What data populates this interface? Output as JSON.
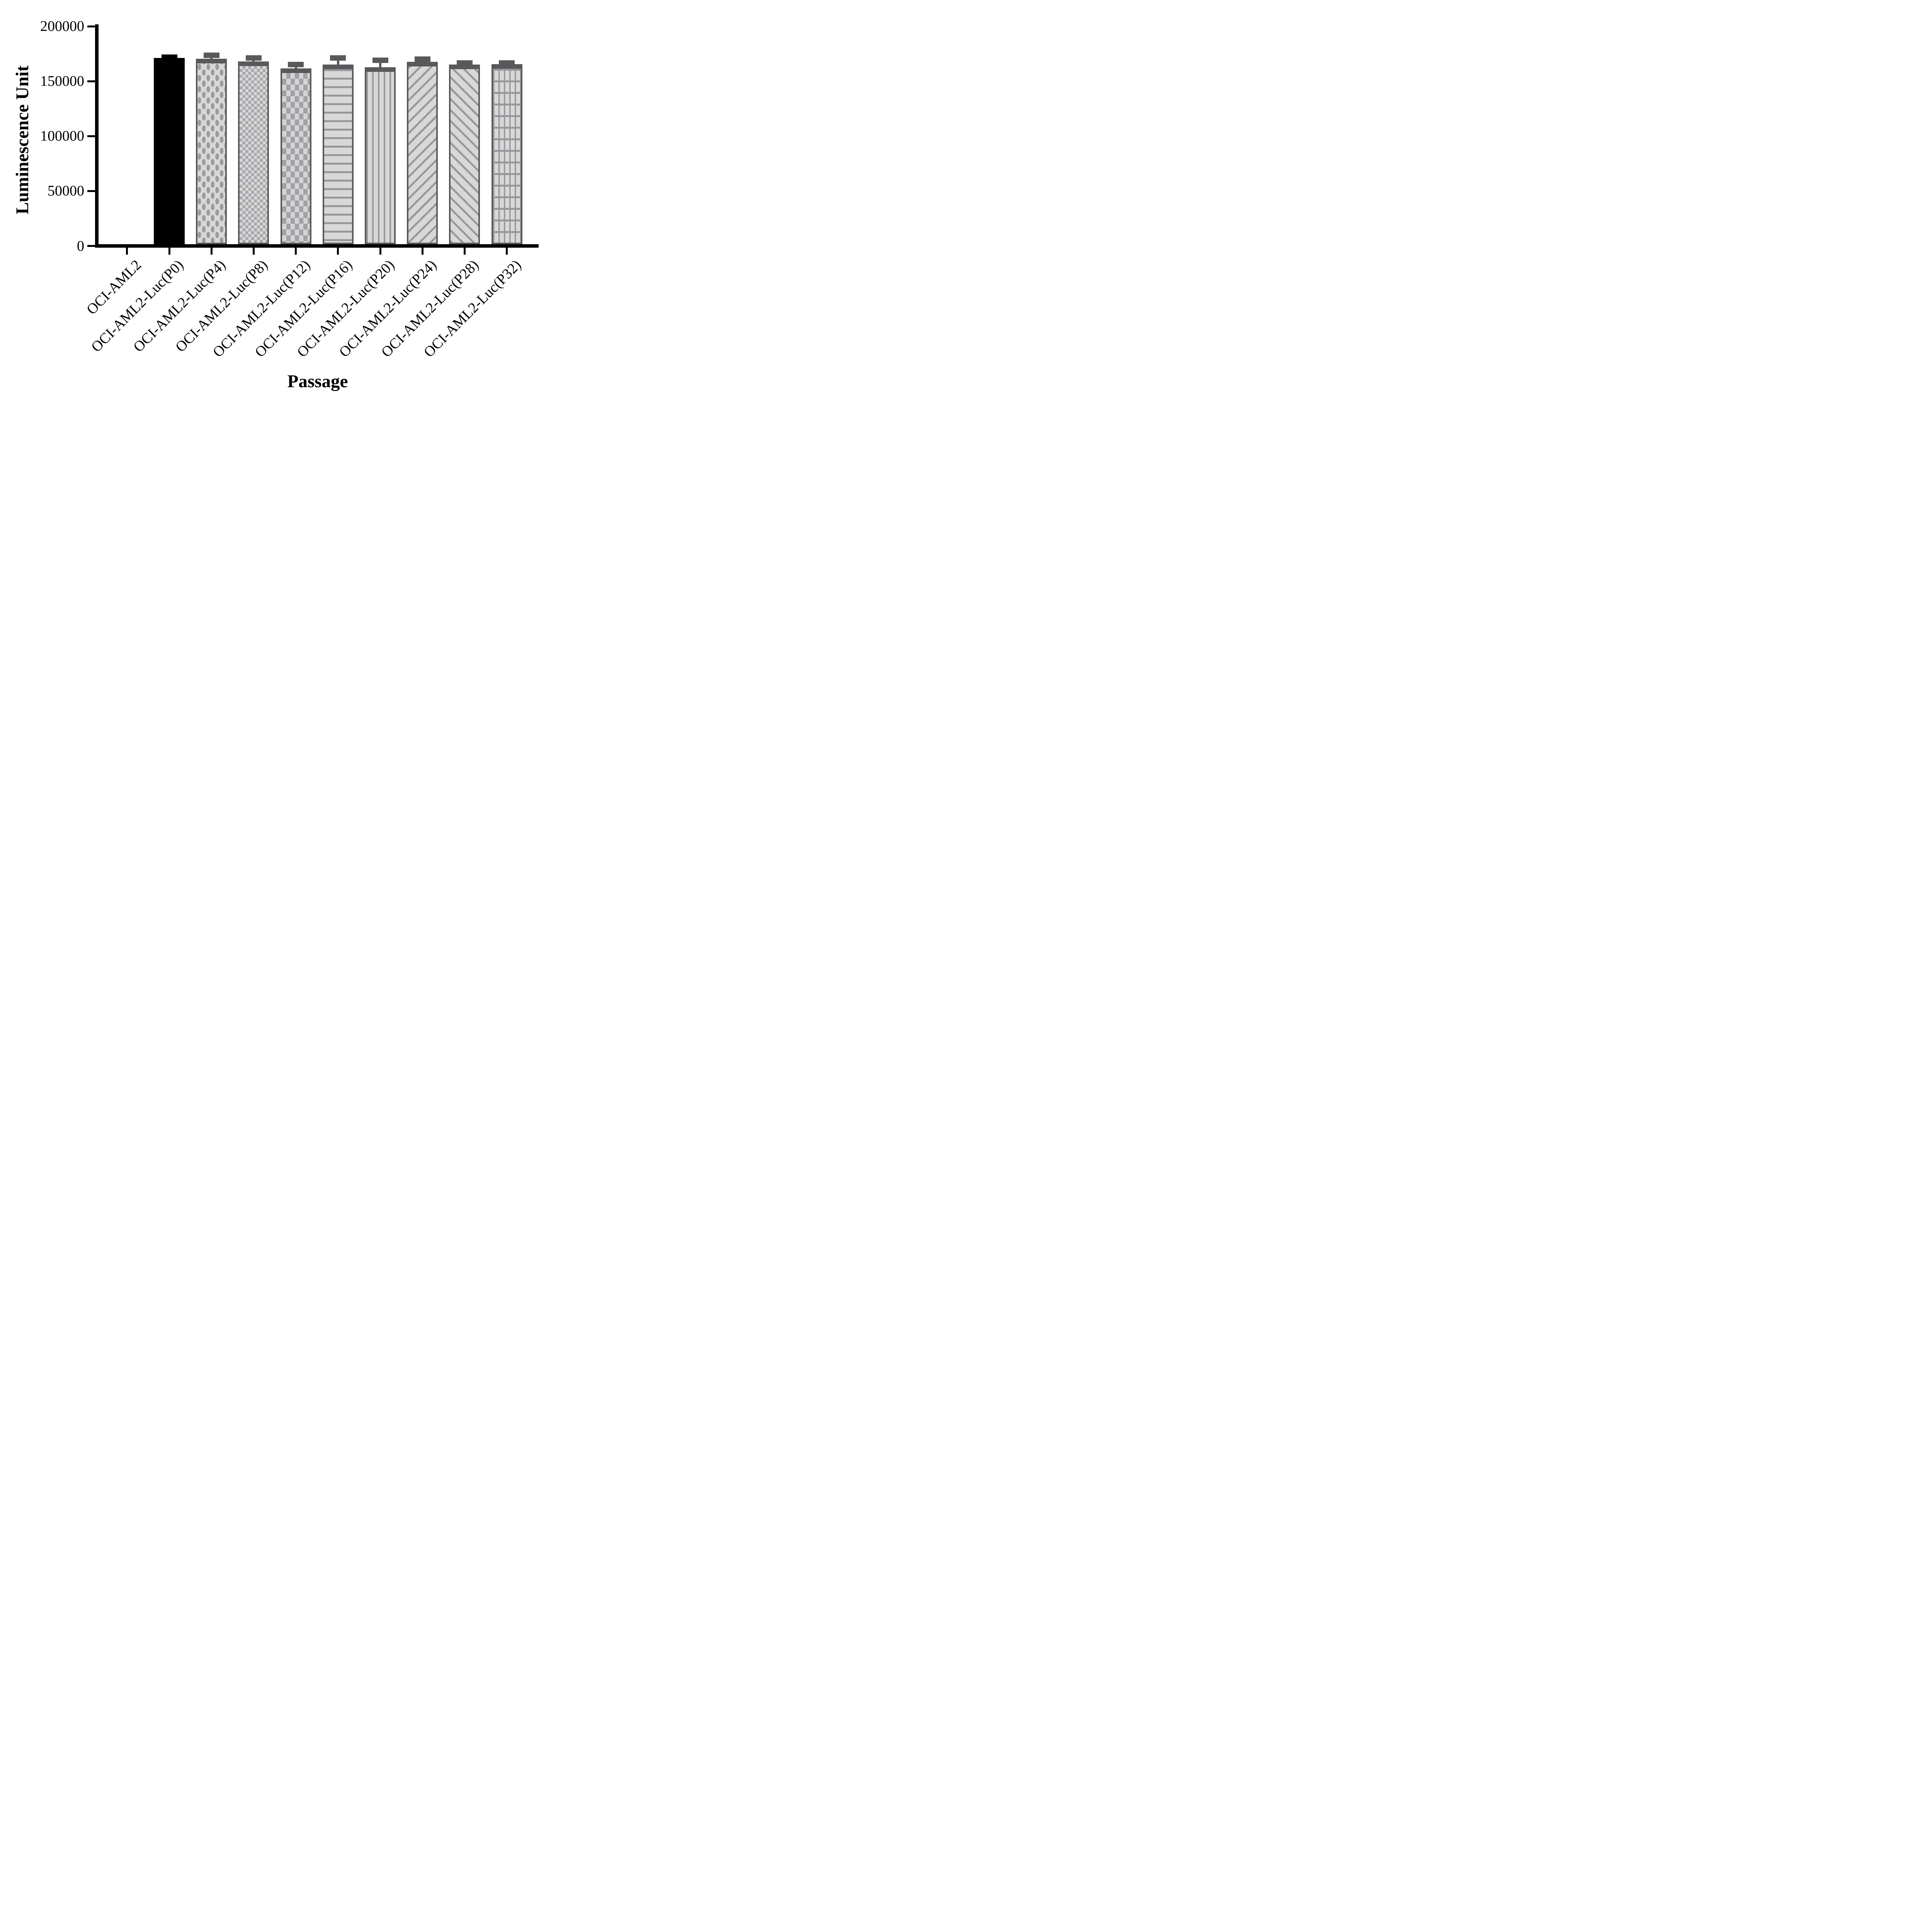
{
  "chart_data": {
    "type": "bar",
    "title": "",
    "xlabel": "Passage",
    "ylabel": "Luminescence Unit",
    "categories": [
      "OCI-AML2",
      "OCI-AML2-Luc(P0)",
      "OCI-AML2-Luc(P4)",
      "OCI-AML2-Luc(P8)",
      "OCI-AML2-Luc(P12)",
      "OCI-AML2-Luc(P16)",
      "OCI-AML2-Luc(P20)",
      "OCI-AML2-Luc(P24)",
      "OCI-AML2-Luc(P28)",
      "OCI-AML2-Luc(P32)"
    ],
    "values": [
      0,
      170500,
      170000,
      167500,
      161000,
      164500,
      162000,
      167000,
      164500,
      165000
    ],
    "errors_plus": [
      0,
      1000,
      3000,
      3000,
      3500,
      6000,
      6500,
      2500,
      1500,
      1000
    ],
    "bar_patterns": [
      "none",
      "solid-black",
      "dots",
      "checker-fine",
      "checker-coarse",
      "horizontal-lines",
      "vertical-lines",
      "diagonal-up",
      "diagonal-down",
      "grid"
    ],
    "ylim": [
      0,
      200000
    ],
    "yticks": [
      0,
      50000,
      100000,
      150000,
      200000
    ],
    "ytick_labels": [
      "0",
      "50000",
      "100000",
      "150000",
      "200000"
    ],
    "grid": false,
    "legend": null,
    "error_bars": "upper only"
  },
  "colors": {
    "bar_fill": "#d8d8d9",
    "pattern_gray": "#9b9b9f",
    "border_gray": "#59595b",
    "black_bar": "#000000",
    "axis": "#000000",
    "background": "#ffffff"
  }
}
